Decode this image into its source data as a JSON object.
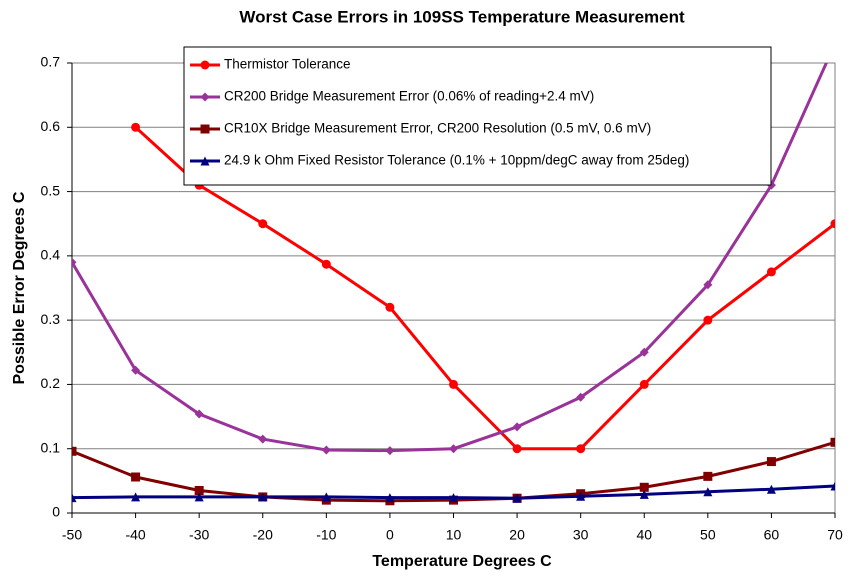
{
  "chart_data": {
    "type": "line",
    "title": "Worst Case Errors in 109SS Temperature Measurement",
    "xlabel": "Temperature Degrees C",
    "ylabel": "Possible Error Degrees C",
    "x": [
      -50,
      -40,
      -30,
      -20,
      -10,
      0,
      10,
      20,
      30,
      40,
      50,
      60,
      70
    ],
    "series": [
      {
        "name": "Thermistor Tolerance",
        "color": "#ff0000",
        "marker": "circle",
        "values": [
          null,
          0.6,
          0.51,
          0.45,
          0.387,
          0.32,
          0.2,
          0.1,
          0.1,
          0.2,
          0.3,
          0.375,
          0.45
        ]
      },
      {
        "name": "CR200 Bridge Measurement Error (0.06% of reading+2.4 mV)",
        "color": "#993399",
        "marker": "diamond",
        "values": [
          0.39,
          0.222,
          0.154,
          0.115,
          0.098,
          0.097,
          0.1,
          0.134,
          0.18,
          0.25,
          0.355,
          0.51,
          0.73
        ]
      },
      {
        "name": "CR10X Bridge Measurement Error, CR200 Resolution (0.5 mV, 0.6 mV)",
        "color": "#800000",
        "marker": "square",
        "values": [
          0.096,
          0.056,
          0.035,
          0.025,
          0.02,
          0.019,
          0.02,
          0.023,
          0.03,
          0.04,
          0.057,
          0.08,
          0.11
        ]
      },
      {
        "name": "24.9 k Ohm Fixed Resistor Tolerance (0.1% + 10ppm/degC away from 25deg)",
        "color": "#000080",
        "marker": "triangle",
        "values": [
          0.024,
          0.025,
          0.025,
          0.025,
          0.025,
          0.024,
          0.024,
          0.023,
          0.026,
          0.029,
          0.033,
          0.037,
          0.042
        ]
      }
    ],
    "xlim": [
      -50,
      70
    ],
    "xticks": [
      -50,
      -40,
      -30,
      -20,
      -10,
      0,
      10,
      20,
      30,
      40,
      50,
      60,
      70
    ],
    "ylim": [
      0,
      0.7
    ],
    "yticks": [
      0,
      0.1,
      0.2,
      0.3,
      0.4,
      0.5,
      0.6,
      0.7
    ],
    "grid": true,
    "legend": "top"
  }
}
